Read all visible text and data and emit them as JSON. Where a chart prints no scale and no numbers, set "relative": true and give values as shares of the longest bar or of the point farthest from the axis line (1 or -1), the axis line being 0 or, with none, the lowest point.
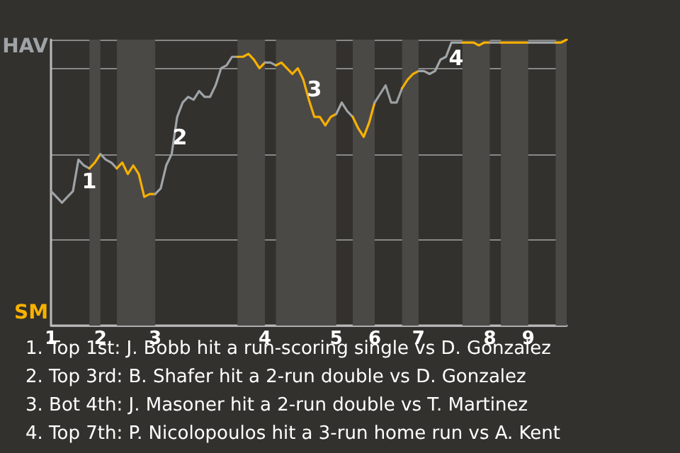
{
  "chart_data": {
    "type": "line",
    "relative": true,
    "categories": [
      "1",
      null,
      null,
      null,
      null,
      null,
      null,
      null,
      null,
      "2",
      null,
      null,
      null,
      null,
      null,
      null,
      null,
      null,
      null,
      "3",
      null,
      null,
      null,
      null,
      null,
      null,
      null,
      null,
      null,
      null,
      null,
      null,
      null,
      null,
      null,
      null,
      null,
      null,
      null,
      "4",
      null,
      null,
      null,
      null,
      null,
      null,
      null,
      null,
      null,
      null,
      null,
      null,
      "5",
      null,
      null,
      null,
      null,
      null,
      null,
      "6",
      null,
      null,
      null,
      null,
      null,
      null,
      null,
      "7",
      null,
      null,
      null,
      null,
      null,
      null,
      null,
      null,
      null,
      null,
      null,
      null,
      "8",
      null,
      null,
      null,
      null,
      null,
      null,
      "9",
      null,
      null,
      null,
      null,
      null,
      null,
      null
    ],
    "series": [
      {
        "color": "#9ea3a6",
        "values": [
          0.47,
          0.45,
          0.43,
          0.45,
          0.47,
          0.58,
          0.56,
          0.55,
          null,
          null,
          null,
          null,
          null,
          null,
          null,
          null,
          null,
          null,
          null,
          null,
          null,
          null,
          null,
          null,
          null,
          null,
          null,
          null,
          null,
          null,
          null,
          null,
          null,
          null,
          null,
          null,
          null,
          null,
          null,
          null,
          null,
          null,
          null,
          null,
          null,
          null,
          null,
          null,
          null,
          null,
          null,
          null,
          null,
          null,
          null,
          null,
          null,
          null,
          null,
          null,
          null,
          null,
          null,
          null,
          null,
          null,
          null,
          null,
          null,
          null,
          null,
          null,
          null,
          null,
          null,
          null,
          null,
          null,
          null,
          null,
          null,
          null,
          null,
          null,
          null,
          null,
          null,
          null,
          null,
          null,
          null,
          null,
          null,
          null,
          null
        ]
      },
      {
        "color": "#f7b100",
        "values": [
          null,
          null,
          null,
          null,
          null,
          null,
          null,
          0.55,
          0.57,
          0.6,
          null,
          null,
          null,
          null,
          null,
          null,
          null,
          null,
          null,
          null,
          null,
          null,
          null,
          null,
          null,
          null,
          null,
          null,
          null,
          null,
          null,
          null,
          null,
          null,
          null,
          null,
          null,
          null,
          null,
          null,
          null,
          null,
          null,
          null,
          null,
          null,
          null,
          null,
          null,
          null,
          null,
          null,
          null,
          null,
          null,
          null,
          null,
          null,
          null,
          null,
          null,
          null,
          null,
          null,
          null,
          null,
          null,
          null,
          null,
          null,
          null,
          null,
          null,
          null,
          null,
          null,
          null,
          null,
          null,
          null,
          null,
          null,
          null,
          null,
          null,
          null,
          null,
          null,
          null,
          null,
          null,
          null,
          null,
          null,
          null
        ]
      },
      {
        "color": "#9da2a5",
        "values": [
          null,
          null,
          null,
          null,
          null,
          null,
          null,
          null,
          null,
          0.6,
          0.58,
          0.57,
          0.55,
          null,
          null,
          null,
          null,
          null,
          null,
          null,
          null,
          null,
          null,
          null,
          null,
          null,
          null,
          null,
          null,
          null,
          null,
          null,
          null,
          null,
          null,
          null,
          null,
          null,
          null,
          null,
          null,
          null,
          null,
          null,
          null,
          null,
          null,
          null,
          null,
          null,
          null,
          null,
          null,
          null,
          null,
          null,
          null,
          null,
          null,
          null,
          null,
          null,
          null,
          null,
          null,
          null,
          null,
          null,
          null,
          null,
          null,
          null,
          null,
          null,
          null,
          null,
          null,
          null,
          null,
          null,
          null,
          null,
          null,
          null,
          null,
          null,
          null,
          null,
          null,
          null,
          null,
          null,
          null,
          null,
          null
        ]
      },
      {
        "color": "#f6b000",
        "values": [
          null,
          null,
          null,
          null,
          null,
          null,
          null,
          null,
          null,
          null,
          null,
          null,
          0.55,
          0.57,
          0.53,
          0.56,
          0.53,
          0.45,
          0.46,
          0.46,
          null,
          null,
          null,
          null,
          null,
          null,
          null,
          null,
          null,
          null,
          null,
          null,
          null,
          null,
          null,
          null,
          null,
          null,
          null,
          null,
          null,
          null,
          null,
          null,
          null,
          null,
          null,
          null,
          null,
          null,
          null,
          null,
          null,
          null,
          null,
          null,
          null,
          null,
          null,
          null,
          null,
          null,
          null,
          null,
          null,
          null,
          null,
          null,
          null,
          null,
          null,
          null,
          null,
          null,
          null,
          null,
          null,
          null,
          null,
          null,
          null,
          null,
          null,
          null,
          null,
          null,
          null,
          null,
          null,
          null,
          null,
          null,
          null,
          null,
          null
        ]
      },
      {
        "color": "#9fa4a7",
        "values": [
          null,
          null,
          null,
          null,
          null,
          null,
          null,
          null,
          null,
          null,
          null,
          null,
          null,
          null,
          null,
          null,
          null,
          null,
          null,
          0.46,
          0.48,
          0.56,
          0.6,
          0.73,
          0.78,
          0.8,
          0.79,
          0.82,
          0.8,
          0.8,
          0.84,
          0.9,
          0.91,
          0.94,
          0.94,
          null,
          null,
          null,
          null,
          null,
          null,
          null,
          null,
          null,
          null,
          null,
          null,
          null,
          null,
          null,
          null,
          null,
          null,
          null,
          null,
          null,
          null,
          null,
          null,
          null,
          null,
          null,
          null,
          null,
          null,
          null,
          null,
          null,
          null,
          null,
          null,
          null,
          null,
          null,
          null,
          null,
          null,
          null,
          null,
          null,
          null,
          null,
          null,
          null,
          null,
          null,
          null,
          null,
          null,
          null,
          null,
          null,
          null,
          null,
          null
        ]
      },
      {
        "color": "#f8b201",
        "values": [
          null,
          null,
          null,
          null,
          null,
          null,
          null,
          null,
          null,
          null,
          null,
          null,
          null,
          null,
          null,
          null,
          null,
          null,
          null,
          null,
          null,
          null,
          null,
          null,
          null,
          null,
          null,
          null,
          null,
          null,
          null,
          null,
          null,
          null,
          0.94,
          0.94,
          0.95,
          0.93,
          0.9,
          0.92,
          null,
          null,
          null,
          null,
          null,
          null,
          null,
          null,
          null,
          null,
          null,
          null,
          null,
          null,
          null,
          null,
          null,
          null,
          null,
          null,
          null,
          null,
          null,
          null,
          null,
          null,
          null,
          null,
          null,
          null,
          null,
          null,
          null,
          null,
          null,
          null,
          null,
          null,
          null,
          null,
          null,
          null,
          null,
          null,
          null,
          null,
          null,
          null,
          null,
          null,
          null,
          null,
          null,
          null,
          null
        ]
      },
      {
        "color": "#9ca1a4",
        "values": [
          null,
          null,
          null,
          null,
          null,
          null,
          null,
          null,
          null,
          null,
          null,
          null,
          null,
          null,
          null,
          null,
          null,
          null,
          null,
          null,
          null,
          null,
          null,
          null,
          null,
          null,
          null,
          null,
          null,
          null,
          null,
          null,
          null,
          null,
          null,
          null,
          null,
          null,
          null,
          0.92,
          0.92,
          0.91,
          null,
          null,
          null,
          null,
          null,
          null,
          null,
          null,
          null,
          null,
          null,
          null,
          null,
          null,
          null,
          null,
          null,
          null,
          null,
          null,
          null,
          null,
          null,
          null,
          null,
          null,
          null,
          null,
          null,
          null,
          null,
          null,
          null,
          null,
          null,
          null,
          null,
          null,
          null,
          null,
          null,
          null,
          null,
          null,
          null,
          null,
          null,
          null,
          null,
          null,
          null,
          null,
          null
        ]
      },
      {
        "color": "#f5af00",
        "values": [
          null,
          null,
          null,
          null,
          null,
          null,
          null,
          null,
          null,
          null,
          null,
          null,
          null,
          null,
          null,
          null,
          null,
          null,
          null,
          null,
          null,
          null,
          null,
          null,
          null,
          null,
          null,
          null,
          null,
          null,
          null,
          null,
          null,
          null,
          null,
          null,
          null,
          null,
          null,
          null,
          null,
          0.91,
          0.92,
          0.9,
          0.88,
          0.9,
          0.86,
          0.79,
          0.73,
          0.73,
          0.7,
          0.73,
          0.74,
          null,
          null,
          null,
          null,
          null,
          null,
          null,
          null,
          null,
          null,
          null,
          null,
          null,
          null,
          null,
          null,
          null,
          null,
          null,
          null,
          null,
          null,
          null,
          null,
          null,
          null,
          null,
          null,
          null,
          null,
          null,
          null,
          null,
          null,
          null,
          null,
          null,
          null,
          null,
          null,
          null,
          null
        ]
      },
      {
        "color": "#a0a5a8",
        "values": [
          null,
          null,
          null,
          null,
          null,
          null,
          null,
          null,
          null,
          null,
          null,
          null,
          null,
          null,
          null,
          null,
          null,
          null,
          null,
          null,
          null,
          null,
          null,
          null,
          null,
          null,
          null,
          null,
          null,
          null,
          null,
          null,
          null,
          null,
          null,
          null,
          null,
          null,
          null,
          null,
          null,
          null,
          null,
          null,
          null,
          null,
          null,
          null,
          null,
          null,
          null,
          null,
          0.74,
          0.78,
          0.75,
          0.73,
          null,
          null,
          null,
          null,
          null,
          null,
          null,
          null,
          null,
          null,
          null,
          null,
          null,
          null,
          null,
          null,
          null,
          null,
          null,
          null,
          null,
          null,
          null,
          null,
          null,
          null,
          null,
          null,
          null,
          null,
          null,
          null,
          null,
          null,
          null,
          null,
          null,
          null,
          null
        ]
      },
      {
        "color": "#f9b302",
        "values": [
          null,
          null,
          null,
          null,
          null,
          null,
          null,
          null,
          null,
          null,
          null,
          null,
          null,
          null,
          null,
          null,
          null,
          null,
          null,
          null,
          null,
          null,
          null,
          null,
          null,
          null,
          null,
          null,
          null,
          null,
          null,
          null,
          null,
          null,
          null,
          null,
          null,
          null,
          null,
          null,
          null,
          null,
          null,
          null,
          null,
          null,
          null,
          null,
          null,
          null,
          null,
          null,
          null,
          null,
          null,
          0.73,
          0.69,
          0.66,
          0.71,
          0.78,
          null,
          null,
          null,
          null,
          null,
          null,
          null,
          null,
          null,
          null,
          null,
          null,
          null,
          null,
          null,
          null,
          null,
          null,
          null,
          null,
          null,
          null,
          null,
          null,
          null,
          null,
          null,
          null,
          null,
          null,
          null,
          null,
          null,
          null,
          null
        ]
      },
      {
        "color": "#9ba0a3",
        "values": [
          null,
          null,
          null,
          null,
          null,
          null,
          null,
          null,
          null,
          null,
          null,
          null,
          null,
          null,
          null,
          null,
          null,
          null,
          null,
          null,
          null,
          null,
          null,
          null,
          null,
          null,
          null,
          null,
          null,
          null,
          null,
          null,
          null,
          null,
          null,
          null,
          null,
          null,
          null,
          null,
          null,
          null,
          null,
          null,
          null,
          null,
          null,
          null,
          null,
          null,
          null,
          null,
          null,
          null,
          null,
          null,
          null,
          null,
          null,
          0.78,
          0.81,
          0.84,
          0.78,
          0.78,
          0.83,
          null,
          null,
          null,
          null,
          null,
          null,
          null,
          null,
          null,
          null,
          null,
          null,
          null,
          null,
          null,
          null,
          null,
          null,
          null,
          null,
          null,
          null,
          null,
          null,
          null,
          null,
          null,
          null,
          null,
          null
        ]
      },
      {
        "color": "#f4ae00",
        "values": [
          null,
          null,
          null,
          null,
          null,
          null,
          null,
          null,
          null,
          null,
          null,
          null,
          null,
          null,
          null,
          null,
          null,
          null,
          null,
          null,
          null,
          null,
          null,
          null,
          null,
          null,
          null,
          null,
          null,
          null,
          null,
          null,
          null,
          null,
          null,
          null,
          null,
          null,
          null,
          null,
          null,
          null,
          null,
          null,
          null,
          null,
          null,
          null,
          null,
          null,
          null,
          null,
          null,
          null,
          null,
          null,
          null,
          null,
          null,
          null,
          null,
          null,
          null,
          null,
          0.83,
          0.86,
          0.88,
          0.89,
          null,
          null,
          null,
          null,
          null,
          null,
          null,
          null,
          null,
          null,
          null,
          null,
          null,
          null,
          null,
          null,
          null,
          null,
          null,
          null,
          null,
          null,
          null,
          null,
          null,
          null,
          null
        ]
      },
      {
        "color": "#a1a6a9",
        "values": [
          null,
          null,
          null,
          null,
          null,
          null,
          null,
          null,
          null,
          null,
          null,
          null,
          null,
          null,
          null,
          null,
          null,
          null,
          null,
          null,
          null,
          null,
          null,
          null,
          null,
          null,
          null,
          null,
          null,
          null,
          null,
          null,
          null,
          null,
          null,
          null,
          null,
          null,
          null,
          null,
          null,
          null,
          null,
          null,
          null,
          null,
          null,
          null,
          null,
          null,
          null,
          null,
          null,
          null,
          null,
          null,
          null,
          null,
          null,
          null,
          null,
          null,
          null,
          null,
          null,
          null,
          null,
          0.89,
          0.89,
          0.88,
          0.89,
          0.93,
          0.94,
          0.99,
          0.99,
          0.99,
          null,
          null,
          null,
          null,
          null,
          null,
          null,
          null,
          null,
          null,
          null,
          null,
          null,
          null,
          null,
          null,
          null,
          null,
          null
        ]
      },
      {
        "color": "#f7b202",
        "values": [
          null,
          null,
          null,
          null,
          null,
          null,
          null,
          null,
          null,
          null,
          null,
          null,
          null,
          null,
          null,
          null,
          null,
          null,
          null,
          null,
          null,
          null,
          null,
          null,
          null,
          null,
          null,
          null,
          null,
          null,
          null,
          null,
          null,
          null,
          null,
          null,
          null,
          null,
          null,
          null,
          null,
          null,
          null,
          null,
          null,
          null,
          null,
          null,
          null,
          null,
          null,
          null,
          null,
          null,
          null,
          null,
          null,
          null,
          null,
          null,
          null,
          null,
          null,
          null,
          null,
          null,
          null,
          null,
          null,
          null,
          null,
          null,
          null,
          null,
          null,
          0.99,
          0.99,
          0.99,
          0.98,
          0.99,
          0.99,
          null,
          null,
          null,
          null,
          null,
          null,
          null,
          null,
          null,
          null,
          null,
          null,
          null,
          null
        ]
      },
      {
        "color": "#9aa0a2",
        "values": [
          null,
          null,
          null,
          null,
          null,
          null,
          null,
          null,
          null,
          null,
          null,
          null,
          null,
          null,
          null,
          null,
          null,
          null,
          null,
          null,
          null,
          null,
          null,
          null,
          null,
          null,
          null,
          null,
          null,
          null,
          null,
          null,
          null,
          null,
          null,
          null,
          null,
          null,
          null,
          null,
          null,
          null,
          null,
          null,
          null,
          null,
          null,
          null,
          null,
          null,
          null,
          null,
          null,
          null,
          null,
          null,
          null,
          null,
          null,
          null,
          null,
          null,
          null,
          null,
          null,
          null,
          null,
          null,
          null,
          null,
          null,
          null,
          null,
          null,
          null,
          null,
          null,
          null,
          null,
          null,
          0.99,
          0.99,
          0.99,
          null,
          null,
          null,
          null,
          null,
          null,
          null,
          null,
          null,
          null,
          null,
          null
        ]
      },
      {
        "color": "#f6af01",
        "values": [
          null,
          null,
          null,
          null,
          null,
          null,
          null,
          null,
          null,
          null,
          null,
          null,
          null,
          null,
          null,
          null,
          null,
          null,
          null,
          null,
          null,
          null,
          null,
          null,
          null,
          null,
          null,
          null,
          null,
          null,
          null,
          null,
          null,
          null,
          null,
          null,
          null,
          null,
          null,
          null,
          null,
          null,
          null,
          null,
          null,
          null,
          null,
          null,
          null,
          null,
          null,
          null,
          null,
          null,
          null,
          null,
          null,
          null,
          null,
          null,
          null,
          null,
          null,
          null,
          null,
          null,
          null,
          null,
          null,
          null,
          null,
          null,
          null,
          null,
          null,
          null,
          null,
          null,
          null,
          null,
          null,
          null,
          0.99,
          0.99,
          0.99,
          0.99,
          0.99,
          0.99,
          null,
          null,
          null,
          null,
          null,
          null,
          null
        ]
      },
      {
        "color": "#a2a7aa",
        "values": [
          null,
          null,
          null,
          null,
          null,
          null,
          null,
          null,
          null,
          null,
          null,
          null,
          null,
          null,
          null,
          null,
          null,
          null,
          null,
          null,
          null,
          null,
          null,
          null,
          null,
          null,
          null,
          null,
          null,
          null,
          null,
          null,
          null,
          null,
          null,
          null,
          null,
          null,
          null,
          null,
          null,
          null,
          null,
          null,
          null,
          null,
          null,
          null,
          null,
          null,
          null,
          null,
          null,
          null,
          null,
          null,
          null,
          null,
          null,
          null,
          null,
          null,
          null,
          null,
          null,
          null,
          null,
          null,
          null,
          null,
          null,
          null,
          null,
          null,
          null,
          null,
          null,
          null,
          null,
          null,
          null,
          null,
          null,
          null,
          null,
          null,
          null,
          0.99,
          0.99,
          0.99,
          0.99,
          0.99,
          0.99,
          null,
          null
        ]
      },
      {
        "color": "#f8b000",
        "values": [
          null,
          null,
          null,
          null,
          null,
          null,
          null,
          null,
          null,
          null,
          null,
          null,
          null,
          null,
          null,
          null,
          null,
          null,
          null,
          null,
          null,
          null,
          null,
          null,
          null,
          null,
          null,
          null,
          null,
          null,
          null,
          null,
          null,
          null,
          null,
          null,
          null,
          null,
          null,
          null,
          null,
          null,
          null,
          null,
          null,
          null,
          null,
          null,
          null,
          null,
          null,
          null,
          null,
          null,
          null,
          null,
          null,
          null,
          null,
          null,
          null,
          null,
          null,
          null,
          null,
          null,
          null,
          null,
          null,
          null,
          null,
          null,
          null,
          null,
          null,
          null,
          null,
          null,
          null,
          null,
          null,
          null,
          null,
          null,
          null,
          null,
          null,
          null,
          null,
          null,
          null,
          null,
          0.99,
          0.99,
          1
        ]
      }
    ],
    "annotations": [
      "HAV",
      "SM",
      "1",
      "2",
      "3",
      "4",
      "1. Top 1st: J. Bobb hit a run-scoring single vs D. Gonzalez",
      "2. Top 3rd: B. Shafer hit a 2-run double vs D. Gonzalez",
      "3. Bot 4th: J. Masoner hit a 2-run double vs T. Martinez",
      "4. Top 7th: P. Nicolopoulos hit a 3-run home run vs A. Kent"
    ],
    "grid": "y",
    "marker": "none",
    "line_style": "solid"
  }
}
